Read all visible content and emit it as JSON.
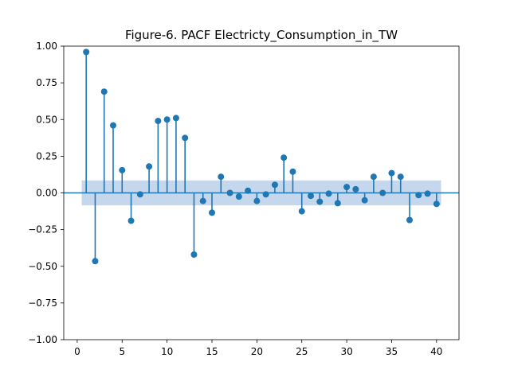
{
  "chart_data": {
    "type": "stem",
    "title": "Figure-6. PACF Electricty_Consumption_in_TW",
    "xlabel": "",
    "ylabel": "",
    "xlim": [
      -1.5,
      42.5
    ],
    "ylim": [
      -1.0,
      1.0
    ],
    "x_ticks": [
      0,
      5,
      10,
      15,
      20,
      25,
      30,
      35,
      40
    ],
    "x_tick_labels": [
      "0",
      "5",
      "10",
      "15",
      "20",
      "25",
      "30",
      "35",
      "40"
    ],
    "y_ticks": [
      1.0,
      0.75,
      0.5,
      0.25,
      0.0,
      -0.25,
      -0.5,
      -0.75,
      -1.0
    ],
    "y_tick_labels": [
      "1.00",
      "0.75",
      "0.50",
      "0.25",
      "0.00",
      "−0.25",
      "−0.50",
      "−0.75",
      "−1.00"
    ],
    "confidence_band": {
      "lag_start": 0.5,
      "lag_end": 40.5,
      "lower": -0.085,
      "upper": 0.085,
      "color": "#c5d7ec"
    },
    "series": [
      {
        "color": "#1f77b4",
        "lags": [
          1,
          2,
          3,
          4,
          5,
          6,
          7,
          8,
          9,
          10,
          11,
          12,
          13,
          14,
          15,
          16,
          17,
          18,
          19,
          20,
          21,
          22,
          23,
          24,
          25,
          26,
          27,
          28,
          29,
          30,
          31,
          32,
          33,
          34,
          35,
          36,
          37,
          38,
          39,
          40
        ],
        "values": [
          0.96,
          -0.465,
          0.69,
          0.46,
          0.155,
          -0.19,
          -0.01,
          0.18,
          0.49,
          0.5,
          0.51,
          0.375,
          -0.42,
          -0.055,
          -0.135,
          0.11,
          0.0,
          -0.025,
          0.015,
          -0.055,
          -0.01,
          0.055,
          0.24,
          0.145,
          -0.125,
          -0.02,
          -0.06,
          -0.005,
          -0.07,
          0.04,
          0.025,
          -0.05,
          0.11,
          0.0,
          0.135,
          0.11,
          -0.185,
          -0.015,
          -0.005,
          -0.075
        ]
      }
    ],
    "grid": false,
    "legend": "none"
  }
}
